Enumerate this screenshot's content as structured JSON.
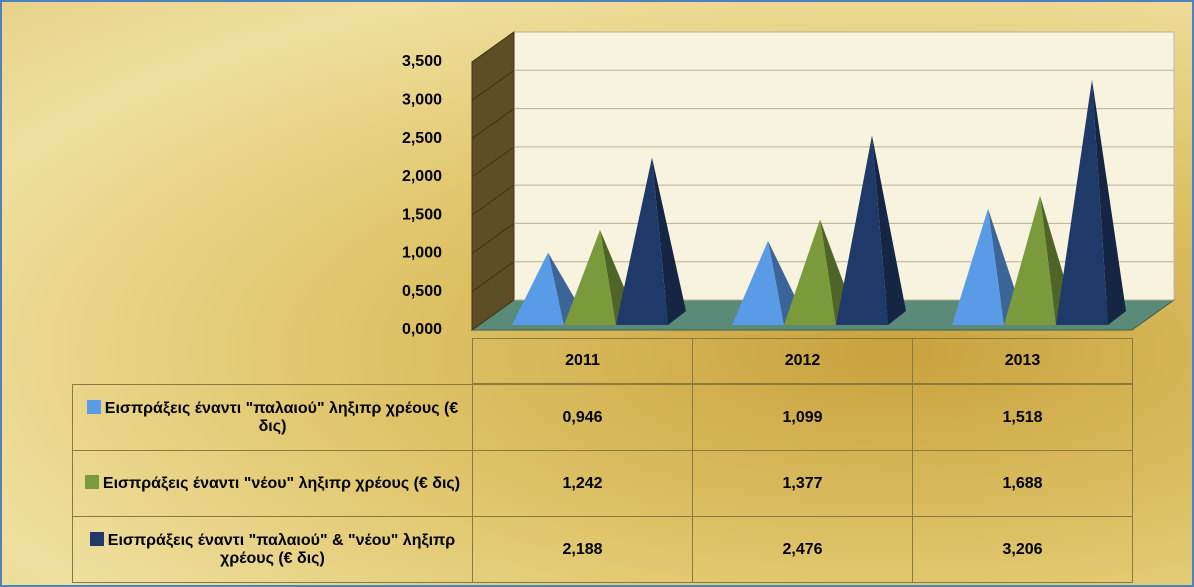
{
  "chart_data": {
    "type": "pyramid",
    "categories": [
      "2011",
      "2012",
      "2013"
    ],
    "series": [
      {
        "name": "Εισπράξεις έναντι \"παλαιού\" ληξιπρ χρέους (€ δις)",
        "color": "#5a9be8",
        "values": [
          0.946,
          1.099,
          1.518
        ],
        "value_labels": [
          "0,946",
          "1,099",
          "1,518"
        ]
      },
      {
        "name": "Εισπράξεις έναντι \"νέου\" ληξιπρ χρέους (€ δις)",
        "color": "#7a9a3c",
        "values": [
          1.242,
          1.377,
          1.688
        ],
        "value_labels": [
          "1,242",
          "1,377",
          "1,688"
        ]
      },
      {
        "name": "Εισπράξεις έναντι \"παλαιού\" & \"νέου\" ληξιπρ χρέους (€ δις)",
        "color": "#1f3a68",
        "values": [
          2.188,
          2.476,
          3.206
        ],
        "value_labels": [
          "2,188",
          "2,476",
          "3,206"
        ]
      }
    ],
    "ylim": [
      0,
      3.5
    ],
    "yticks": [
      {
        "value": 0,
        "label": "0,000"
      },
      {
        "value": 0.5,
        "label": "0,500"
      },
      {
        "value": 1,
        "label": "1,000"
      },
      {
        "value": 1.5,
        "label": "1,500"
      },
      {
        "value": 2,
        "label": "2,000"
      },
      {
        "value": 2.5,
        "label": "2,500"
      },
      {
        "value": 3,
        "label": "3,000"
      },
      {
        "value": 3.5,
        "label": "3,500"
      }
    ],
    "grid": true,
    "data_table": true
  }
}
